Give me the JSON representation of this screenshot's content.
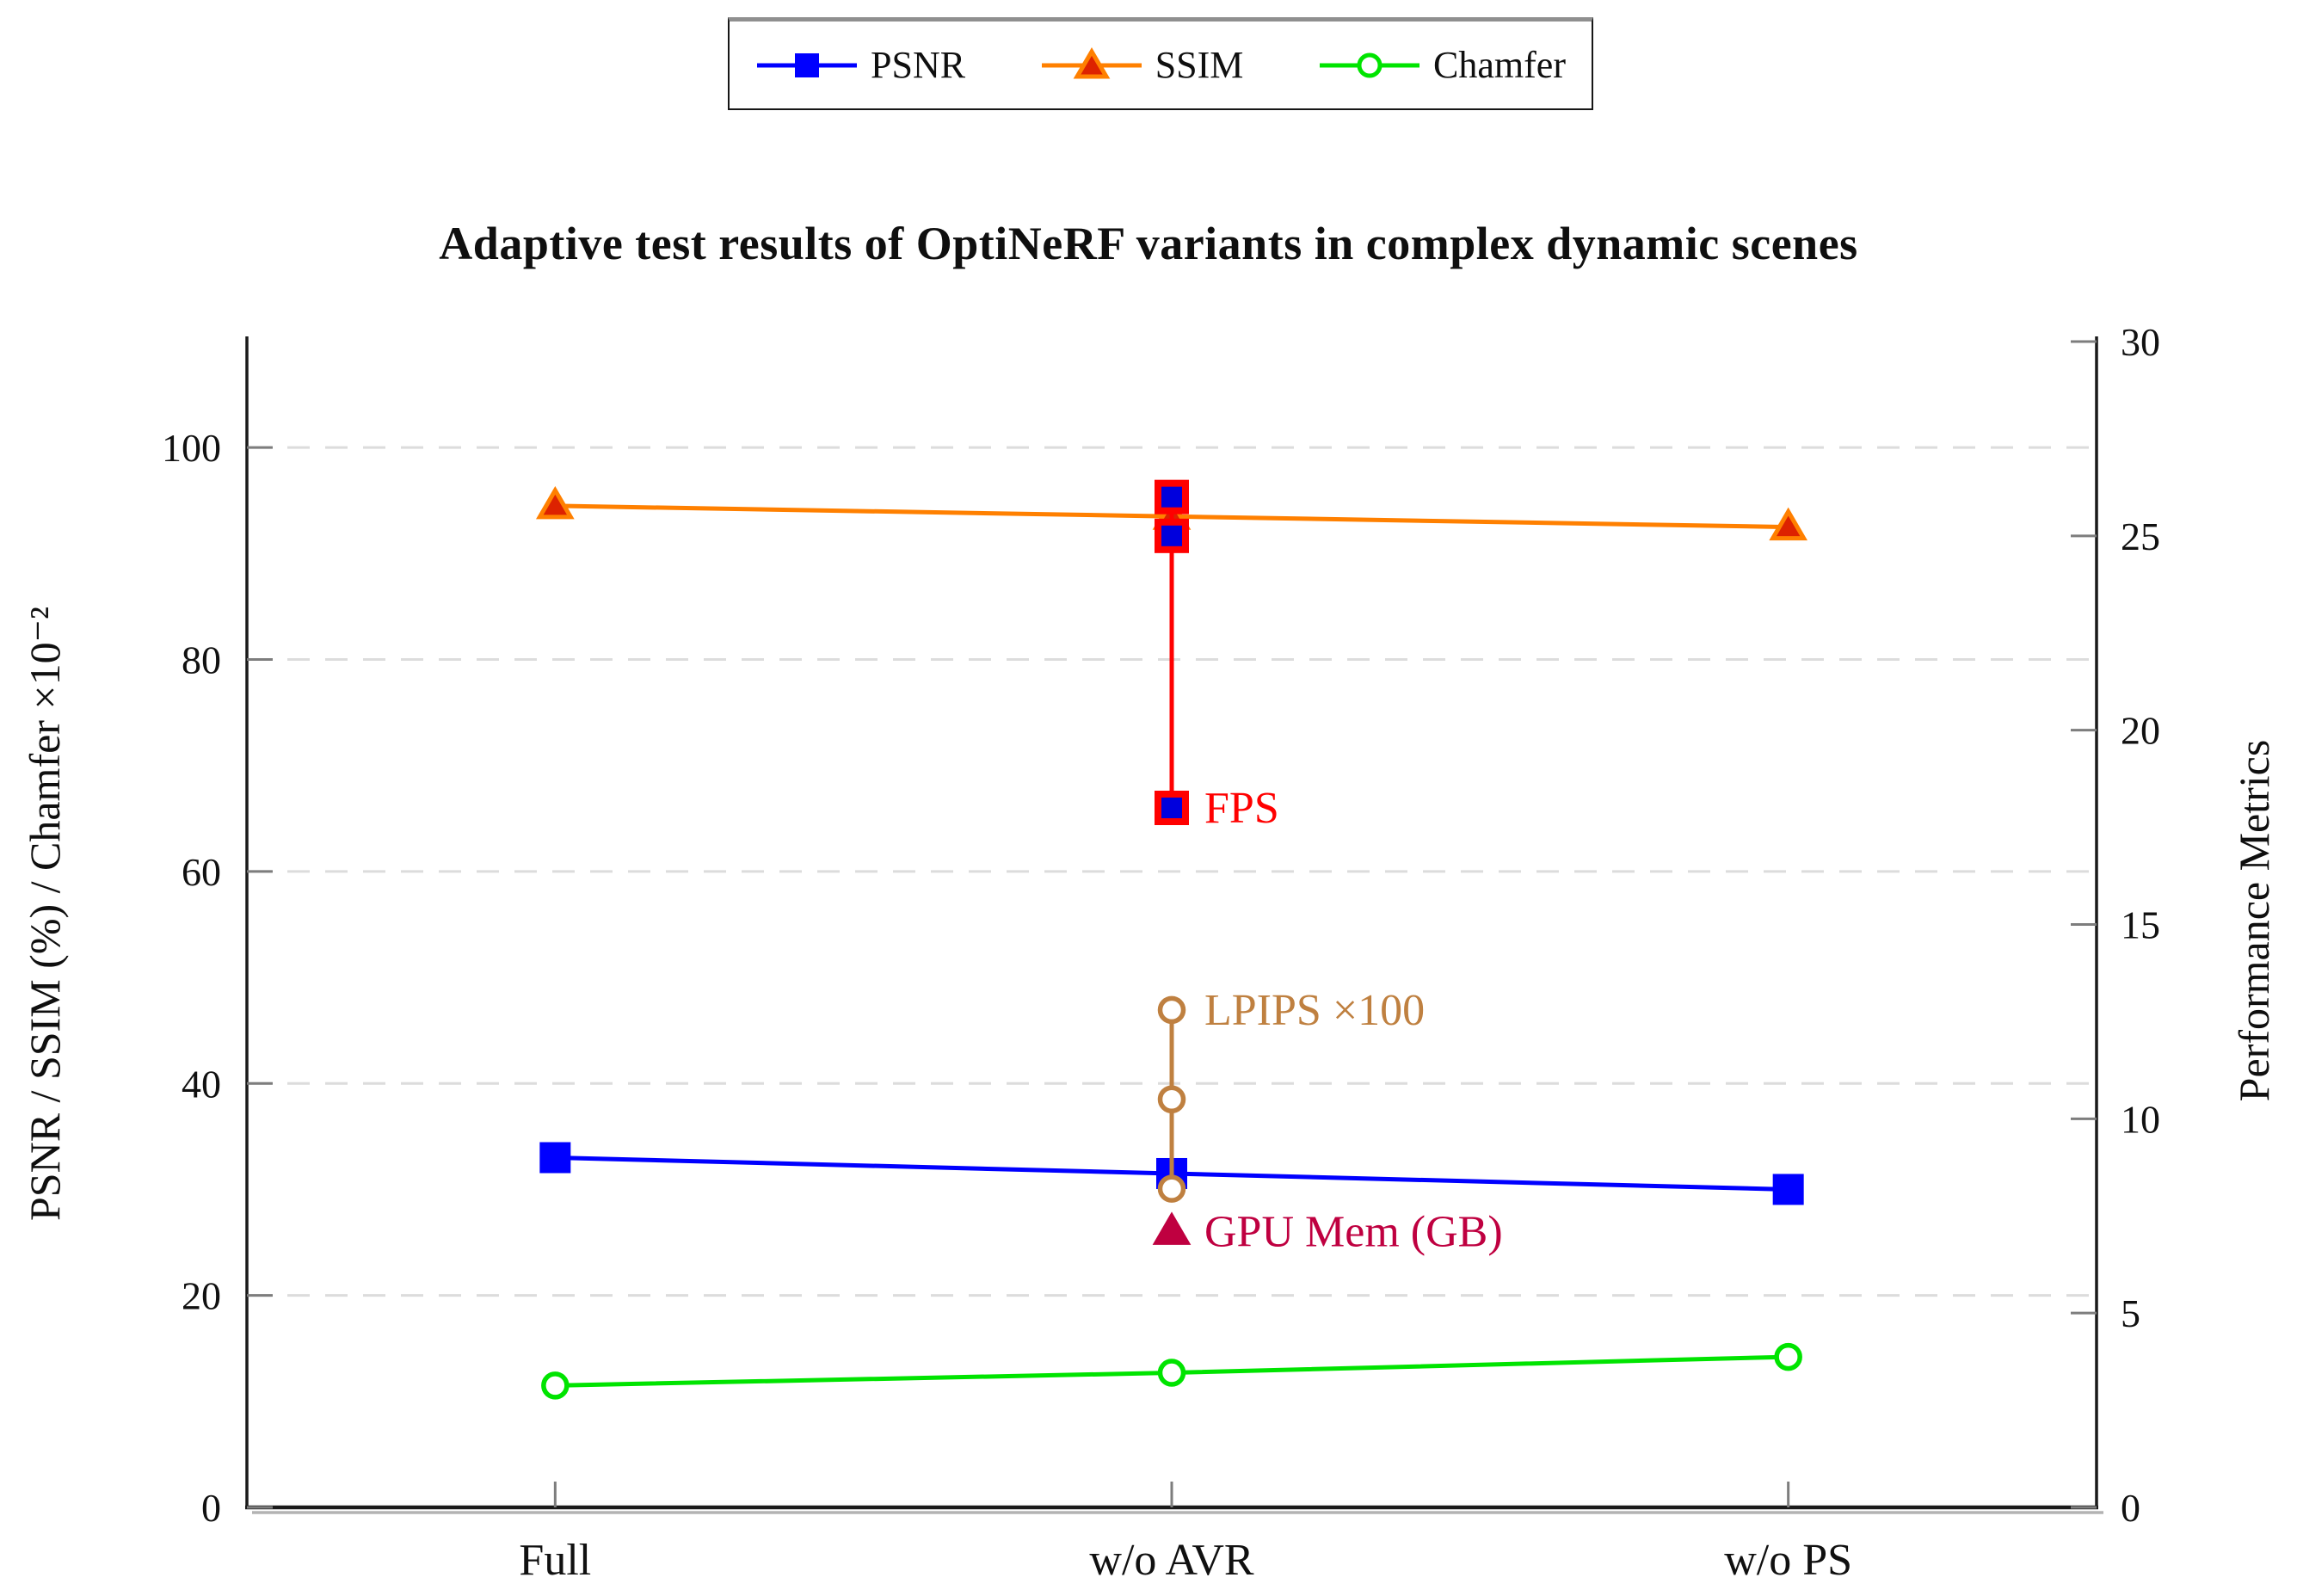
{
  "title": "Adaptive test results of OptiNeRF variants in complex dynamic scenes",
  "legend": {
    "items": [
      {
        "label": "PSNR"
      },
      {
        "label": "SSIM"
      },
      {
        "label": "Chamfer"
      }
    ]
  },
  "chart_data": {
    "type": "line",
    "categories": [
      "Full",
      "w/o AVR",
      "w/o PS"
    ],
    "axes": {
      "left": {
        "label": "PSNR / SSIM (%) / Chamfer ×10⁻²",
        "range": [
          0,
          110
        ],
        "ticks": [
          0,
          20,
          40,
          60,
          80,
          100
        ]
      },
      "right": {
        "label": "Performance Metrics",
        "range": [
          0,
          30
        ],
        "ticks": [
          0,
          5,
          10,
          15,
          20,
          25,
          30
        ]
      }
    },
    "grid": {
      "dashed_at_left_values": [
        20,
        40,
        60,
        80,
        100
      ],
      "color": "#dcdcdc"
    },
    "series": [
      {
        "name": "PSNR",
        "axis": "left",
        "color": "#0000ff",
        "marker": "square-filled",
        "values": [
          33,
          31.5,
          30
        ]
      },
      {
        "name": "SSIM",
        "axis": "left",
        "color": "#ff8000",
        "marker": "triangle-filled",
        "marker_fill": "#dd2200",
        "values": [
          94.5,
          93.5,
          92.5
        ]
      },
      {
        "name": "Chamfer",
        "axis": "left",
        "color": "#00e400",
        "marker": "circle-open",
        "values": [
          11.5,
          12.7,
          14.2
        ]
      }
    ],
    "annotation_series": [
      {
        "name": "FPS",
        "axis": "right",
        "color": "#ff0000",
        "marker": "square-filled",
        "marker_fill": "#0000dd",
        "x_category": "w/o AVR",
        "values": [
          26,
          25,
          18
        ],
        "label": "FPS",
        "label_at_value": 18
      },
      {
        "name": "LPIPS x100",
        "axis": "right",
        "color": "#bf8040",
        "marker": "circle-open",
        "x_category": "w/o AVR",
        "values": [
          12.8,
          10.5,
          8.2
        ],
        "label": "LPIPS ×100",
        "label_at_value": 12.8
      },
      {
        "name": "GPU Mem",
        "axis": "right",
        "color": "#bf0040",
        "marker": "triangle-filled",
        "x_category": "w/o AVR",
        "values": [
          7.1
        ],
        "label": "GPU Mem (GB)",
        "label_at_value": 7.1
      }
    ]
  }
}
